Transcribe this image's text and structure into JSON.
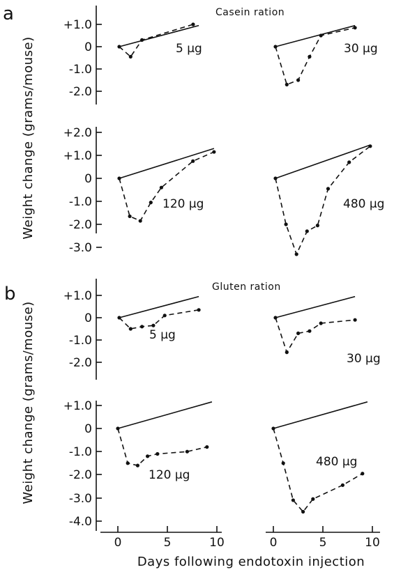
{
  "figure": {
    "panel_a_letter": "a",
    "panel_b_letter": "b",
    "casein_label": "Casein ration",
    "gluten_label": "Gluten ration",
    "ylabel": "Weight change (grams/mouse)",
    "xlabel": "Days following endotoxin injection"
  },
  "chart_data": [
    {
      "type": "line",
      "ration": "Casein ration",
      "dose_label": "5 μg",
      "ylim": [
        -2.0,
        1.0
      ],
      "xlim": [
        0,
        7
      ],
      "yticks": [
        "+1.0",
        "0",
        "-1.0",
        "-2.0"
      ],
      "control": [
        [
          0,
          0
        ],
        [
          7,
          0.95
        ]
      ],
      "series": [
        {
          "x": [
            0,
            1,
            2,
            6.5
          ],
          "y": [
            0,
            -0.45,
            0.3,
            1.0
          ]
        }
      ]
    },
    {
      "type": "line",
      "ration": "Casein ration",
      "dose_label": "30 μg",
      "ylim": [
        -2.0,
        1.0
      ],
      "xlim": [
        0,
        7
      ],
      "control": [
        [
          0,
          0
        ],
        [
          7,
          0.95
        ]
      ],
      "series": [
        {
          "x": [
            0,
            1,
            2,
            3,
            4,
            7
          ],
          "y": [
            0,
            -1.7,
            -1.5,
            -0.45,
            0.5,
            0.85
          ]
        }
      ]
    },
    {
      "type": "line",
      "ration": "Casein ration",
      "dose_label": "120 μg",
      "ylim": [
        -3.0,
        2.0
      ],
      "xlim": [
        0,
        9
      ],
      "yticks": [
        "+2.0",
        "+1.0",
        "0",
        "-1.0",
        "-2.0",
        "-3.0"
      ],
      "control": [
        [
          0,
          0
        ],
        [
          9,
          1.3
        ]
      ],
      "series": [
        {
          "x": [
            0,
            1,
            2,
            3,
            4,
            7,
            9
          ],
          "y": [
            0,
            -1.65,
            -1.85,
            -1.05,
            -0.4,
            0.75,
            1.15
          ]
        }
      ]
    },
    {
      "type": "line",
      "ration": "Casein ration",
      "dose_label": "480 μg",
      "ylim": [
        -3.0,
        2.0
      ],
      "xlim": [
        0,
        9
      ],
      "control": [
        [
          0,
          0
        ],
        [
          9,
          1.45
        ]
      ],
      "series": [
        {
          "x": [
            0,
            1,
            2,
            3,
            4,
            5,
            7,
            9
          ],
          "y": [
            0,
            -2.0,
            -3.3,
            -2.3,
            -2.05,
            -0.45,
            0.7,
            1.4
          ]
        }
      ]
    },
    {
      "type": "line",
      "ration": "Gluten ration",
      "dose_label": "5 μg",
      "ylim": [
        -2.0,
        1.0
      ],
      "xlim": [
        0,
        7
      ],
      "yticks": [
        "+1.0",
        "0",
        "-1.0",
        "-2.0"
      ],
      "control": [
        [
          0,
          0
        ],
        [
          7,
          0.95
        ]
      ],
      "series": [
        {
          "x": [
            0,
            1,
            2,
            3,
            4,
            7
          ],
          "y": [
            0,
            -0.5,
            -0.4,
            -0.35,
            0.1,
            0.35
          ]
        }
      ]
    },
    {
      "type": "line",
      "ration": "Gluten ration",
      "dose_label": "30 μg",
      "ylim": [
        -2.0,
        1.0
      ],
      "xlim": [
        0,
        7
      ],
      "control": [
        [
          0,
          0
        ],
        [
          7,
          0.95
        ]
      ],
      "series": [
        {
          "x": [
            0,
            1,
            2,
            3,
            4,
            7
          ],
          "y": [
            0,
            -1.55,
            -0.7,
            -0.6,
            -0.25,
            -0.1
          ]
        }
      ]
    },
    {
      "type": "line",
      "ration": "Gluten ration",
      "dose_label": "120 μg",
      "ylim": [
        -4.0,
        1.0
      ],
      "xlim": [
        0,
        10
      ],
      "yticks": [
        "+1.0",
        "0",
        "-1.0",
        "-2.0",
        "-3.0",
        "-4.0"
      ],
      "xticks": [
        "0",
        "5",
        "10"
      ],
      "control": [
        [
          0,
          0
        ],
        [
          9.5,
          1.15
        ]
      ],
      "series": [
        {
          "x": [
            0,
            1,
            2,
            3,
            4,
            7,
            9
          ],
          "y": [
            0,
            -1.5,
            -1.6,
            -1.2,
            -1.1,
            -1.0,
            -0.8
          ]
        }
      ]
    },
    {
      "type": "line",
      "ration": "Gluten ration",
      "dose_label": "480 μg",
      "ylim": [
        -4.0,
        1.0
      ],
      "xlim": [
        0,
        10
      ],
      "xticks": [
        "0",
        "5",
        "10"
      ],
      "control": [
        [
          0,
          0
        ],
        [
          9.5,
          1.15
        ]
      ],
      "series": [
        {
          "x": [
            0,
            1,
            2,
            3,
            4,
            7,
            9
          ],
          "y": [
            0,
            -1.5,
            -3.1,
            -3.6,
            -3.05,
            -2.45,
            -1.95
          ]
        }
      ]
    }
  ]
}
